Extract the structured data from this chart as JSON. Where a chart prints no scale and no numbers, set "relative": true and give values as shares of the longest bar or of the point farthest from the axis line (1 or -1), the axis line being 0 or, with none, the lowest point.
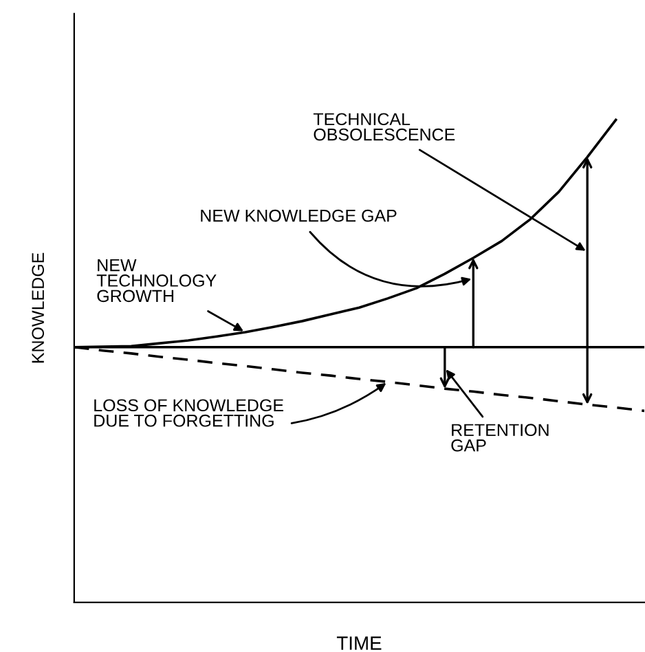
{
  "chart_data": {
    "type": "line",
    "relative": true,
    "xlabel": "TIME",
    "ylabel": "KNOWLEDGE",
    "categories": [
      null,
      null,
      null,
      null,
      null,
      null,
      null,
      null,
      null,
      null,
      null,
      null,
      null,
      null,
      null,
      null,
      null,
      null,
      null,
      null,
      null
    ],
    "series": [
      {
        "name": "NEW\nTECHNOLOGY\nGROWTH",
        "color": "#000000",
        "line_style": "solid",
        "values": [
          0.529,
          0.53,
          0.531,
          0.537,
          0.543,
          0.551,
          0.56,
          0.571,
          0.583,
          0.597,
          0.611,
          0.63,
          0.651,
          0.681,
          0.714,
          0.749,
          0.794,
          0.851,
          0.923,
          1,
          null
        ]
      },
      {
        "color": "#000000",
        "line_style": "solid",
        "values": [
          0.529,
          0.529,
          0.529,
          0.529,
          0.529,
          0.529,
          0.529,
          0.529,
          0.529,
          0.529,
          0.529,
          0.529,
          0.529,
          0.529,
          0.529,
          0.529,
          0.529,
          0.529,
          0.529,
          0.529,
          0.529
        ]
      },
      {
        "name": "LOSS OF KNOWLEDGE\nDUE TO FORGETTING",
        "color": "#000000",
        "line_style": "dashed",
        "values": [
          0.529,
          0.522,
          0.516,
          0.509,
          0.503,
          0.496,
          0.49,
          0.483,
          0.476,
          0.47,
          0.463,
          0.457,
          0.45,
          0.443,
          0.437,
          0.43,
          0.424,
          0.417,
          0.41,
          0.404,
          0.397
        ]
      }
    ],
    "annotations": [
      "TECHNICAL\nOBSOLESCENCE",
      "NEW KNOWLEDGE GAP",
      "RETENTION\nGAP"
    ],
    "grid": false,
    "legend": false,
    "marker": "none"
  }
}
